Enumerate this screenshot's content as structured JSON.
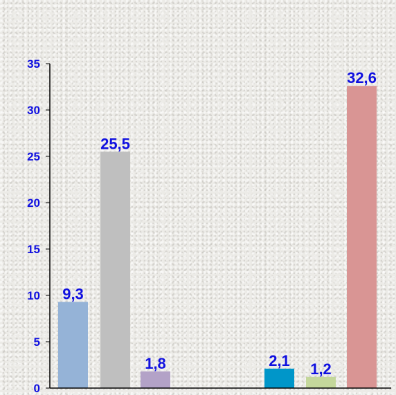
{
  "chart_data": {
    "type": "bar",
    "title": "",
    "xlabel": "",
    "ylabel": "",
    "ylim": [
      0,
      35
    ],
    "yticks": [
      0,
      5,
      10,
      15,
      20,
      25,
      30,
      35
    ],
    "grid": false,
    "legend": "none",
    "bars": [
      {
        "value": 9.3,
        "label": "9,3",
        "color": "#95b3d7"
      },
      {
        "value": 25.5,
        "label": "25,5",
        "color": "#bfbfbf"
      },
      {
        "value": 1.8,
        "label": "1,8",
        "color": "#b3a2c7"
      },
      {
        "value": 2.1,
        "label": "2,1",
        "color": "#0096c9"
      },
      {
        "value": 1.2,
        "label": "1,2",
        "color": "#c4d79b"
      },
      {
        "value": 32.6,
        "label": "32,6",
        "color": "#d99594"
      }
    ],
    "axis_color": "#000000",
    "label_color": "#1010e0"
  }
}
